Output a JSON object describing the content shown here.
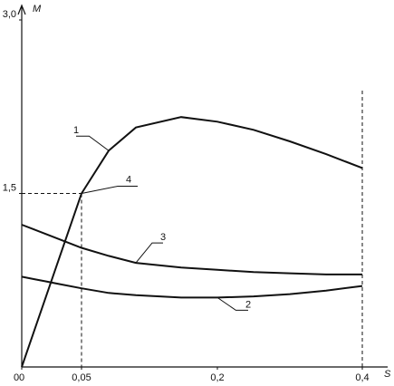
{
  "chart_data": {
    "type": "line",
    "y_label": "M",
    "x_label": "S",
    "x": [
      0,
      0.01,
      0.02,
      0.03,
      0.05,
      0.08,
      0.11,
      0.16,
      0.2,
      0.25,
      0.3,
      0.35,
      0.4
    ],
    "series": [
      {
        "name": "1",
        "color": "#111111",
        "values": [
          0,
          0.3,
          0.6,
          0.9,
          1.5,
          1.87,
          2.07,
          2.16,
          2.12,
          2.05,
          1.95,
          1.84,
          1.72
        ]
      },
      {
        "name": "2",
        "color": "#111111",
        "values": [
          0.78,
          0.76,
          0.74,
          0.72,
          0.68,
          0.64,
          0.62,
          0.6,
          0.6,
          0.61,
          0.63,
          0.66,
          0.7
        ]
      },
      {
        "name": "3",
        "color": "#111111",
        "values": [
          1.23,
          1.19,
          1.15,
          1.11,
          1.03,
          0.96,
          0.9,
          0.86,
          0.84,
          0.82,
          0.81,
          0.8,
          0.8
        ]
      }
    ],
    "annotations": [
      {
        "text": "4",
        "x": 0.05,
        "y": 1.5
      }
    ],
    "xlim": [
      0,
      0.4
    ],
    "xticks": [
      0,
      {
        "value": 0.05,
        "label": "0,05"
      },
      {
        "value": 0.2,
        "label": "0,2"
      },
      {
        "value": 0.4,
        "label": "0,4"
      }
    ],
    "ylim": [
      0,
      3.0
    ],
    "yticks": [
      {
        "value": 1.5,
        "label": "1,5"
      },
      {
        "value": 3.0,
        "label": "3,0"
      }
    ]
  }
}
